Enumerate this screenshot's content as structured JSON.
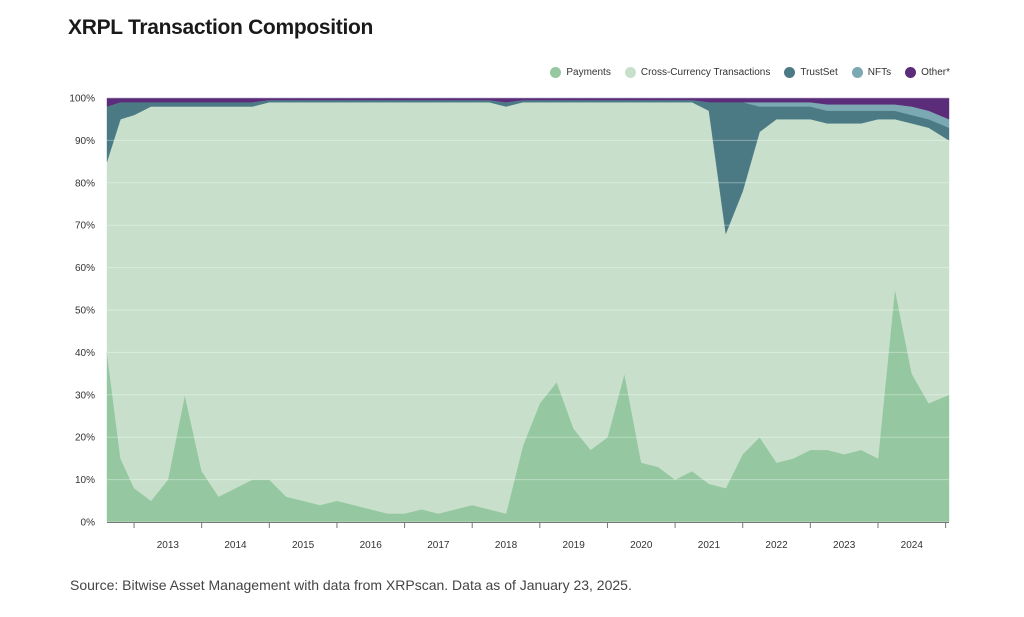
{
  "title": "XRPL Transaction Composition",
  "source": "Source: Bitwise Asset Management with data from XRPscan. Data as of January 23, 2025.",
  "chart_data": {
    "type": "area",
    "stacked": "percent",
    "title": "XRPL Transaction Composition",
    "xlabel": "",
    "ylabel": "",
    "ylim": [
      0,
      100
    ],
    "legend_position": "top-right",
    "x_ticks": [
      "2013",
      "2014",
      "2015",
      "2016",
      "2017",
      "2018",
      "2019",
      "2020",
      "2021",
      "2022",
      "2023",
      "2024"
    ],
    "y_ticks": [
      "0%",
      "10%",
      "20%",
      "30%",
      "40%",
      "50%",
      "60%",
      "70%",
      "80%",
      "90%",
      "100%"
    ],
    "x": [
      2012.6,
      2012.8,
      2013.0,
      2013.25,
      2013.5,
      2013.75,
      2014.0,
      2014.25,
      2014.5,
      2014.75,
      2015.0,
      2015.25,
      2015.5,
      2015.75,
      2016.0,
      2016.25,
      2016.5,
      2016.75,
      2017.0,
      2017.25,
      2017.5,
      2017.75,
      2018.0,
      2018.25,
      2018.5,
      2018.75,
      2019.0,
      2019.25,
      2019.5,
      2019.75,
      2020.0,
      2020.25,
      2020.5,
      2020.75,
      2021.0,
      2021.25,
      2021.5,
      2021.75,
      2022.0,
      2022.25,
      2022.5,
      2022.75,
      2023.0,
      2023.25,
      2023.5,
      2023.75,
      2024.0,
      2024.25,
      2024.5,
      2024.75,
      2025.05
    ],
    "series": [
      {
        "name": "Payments",
        "color": "#95c8a1",
        "values": [
          40,
          15,
          8,
          5,
          10,
          30,
          12,
          6,
          8,
          10,
          10,
          6,
          5,
          4,
          5,
          4,
          3,
          2,
          2,
          3,
          2,
          3,
          4,
          3,
          2,
          18,
          28,
          33,
          22,
          17,
          20,
          35,
          14,
          13,
          10,
          12,
          9,
          8,
          16,
          20,
          14,
          15,
          17,
          17,
          16,
          17,
          15,
          55,
          35,
          28,
          30
        ]
      },
      {
        "name": "Cross-Currency Transactions",
        "color": "#c8e0cb",
        "values": [
          45,
          80,
          88,
          93,
          88,
          68,
          86,
          92,
          90,
          88,
          89,
          93,
          94,
          95,
          94,
          95,
          96,
          97,
          97,
          96,
          97,
          96,
          95,
          96,
          96,
          81,
          71,
          66,
          77,
          82,
          79,
          64,
          85,
          86,
          89,
          87,
          88,
          60,
          62,
          72,
          81,
          80,
          78,
          77,
          78,
          77,
          80,
          40,
          59,
          65,
          60
        ]
      },
      {
        "name": "TrustSet",
        "color": "#4b7a85",
        "values": [
          13,
          4,
          3,
          1,
          1,
          1,
          1,
          1,
          1,
          1,
          0.5,
          0.5,
          0.5,
          0.5,
          0.5,
          0.5,
          0.5,
          0.5,
          0.5,
          0.5,
          0.5,
          0.5,
          0.5,
          0.5,
          1,
          0.5,
          0.5,
          0.5,
          0.5,
          0.5,
          0.5,
          0.5,
          0.5,
          0.5,
          0.5,
          0.5,
          2,
          31,
          21,
          6,
          3,
          3,
          3,
          3,
          3,
          3,
          2,
          2,
          2,
          2,
          3
        ]
      },
      {
        "name": "NFTs",
        "color": "#7ba8b2",
        "values": [
          0,
          0,
          0,
          0,
          0,
          0,
          0,
          0,
          0,
          0,
          0,
          0,
          0,
          0,
          0,
          0,
          0,
          0,
          0,
          0,
          0,
          0,
          0,
          0,
          0,
          0,
          0,
          0,
          0,
          0,
          0,
          0,
          0,
          0,
          0,
          0,
          0,
          0,
          0,
          1,
          1,
          1,
          1,
          1.5,
          1.5,
          1.5,
          1.5,
          1.5,
          2,
          2,
          2
        ]
      },
      {
        "name": "Other*",
        "color": "#5b2c79",
        "values": [
          2,
          1,
          1,
          1,
          1,
          1,
          1,
          1,
          1,
          1,
          0.5,
          0.5,
          0.5,
          0.5,
          0.5,
          0.5,
          0.5,
          0.5,
          0.5,
          0.5,
          0.5,
          0.5,
          0.5,
          0.5,
          1,
          0.5,
          0.5,
          0.5,
          0.5,
          0.5,
          0.5,
          0.5,
          0.5,
          0.5,
          0.5,
          0.5,
          1,
          1,
          1,
          1,
          1,
          1,
          1,
          1.5,
          1.5,
          1.5,
          1.5,
          1.5,
          2,
          3,
          5
        ]
      }
    ]
  }
}
